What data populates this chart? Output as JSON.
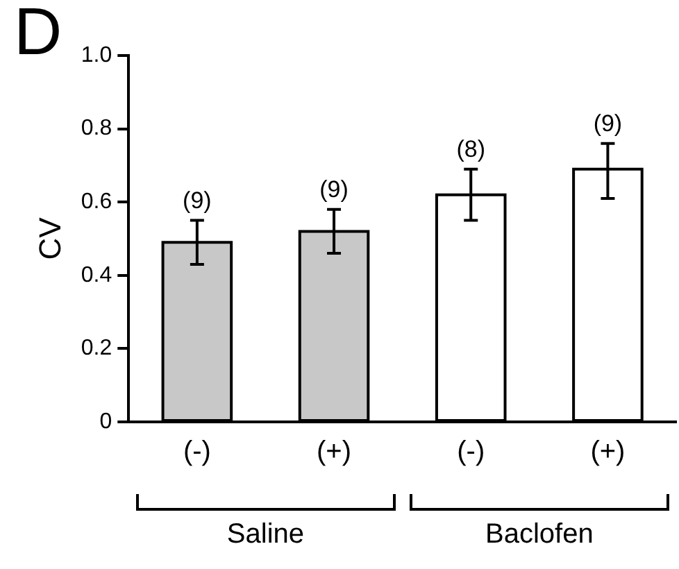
{
  "chart_data": {
    "type": "bar",
    "title": "D",
    "ylabel": "CV",
    "categories": [
      "(-)",
      "(+)",
      "(-)",
      "(+)"
    ],
    "values": [
      0.49,
      0.52,
      0.62,
      0.69
    ],
    "colors": [
      "#c8c8c8",
      "#c8c8c8",
      "#ffffff",
      "#ffffff"
    ],
    "errors": [
      [
        0.43,
        0.55
      ],
      [
        0.46,
        0.58
      ],
      [
        0.55,
        0.69
      ],
      [
        0.61,
        0.76
      ]
    ],
    "annotations": [
      {
        "text": "(9)",
        "y": 0.55
      },
      {
        "text": "(9)",
        "y": 0.58
      },
      {
        "text": "(8)",
        "y": 0.69
      },
      {
        "text": "(9)",
        "y": 0.76
      },
      "Saline",
      "Baclofen"
    ],
    "ylim": [
      0,
      1
    ],
    "yticks": [
      0,
      0.2,
      0.4,
      0.6,
      0.8,
      {
        "value": 1,
        "label": "1.0"
      }
    ],
    "grid": false,
    "legend": false
  }
}
